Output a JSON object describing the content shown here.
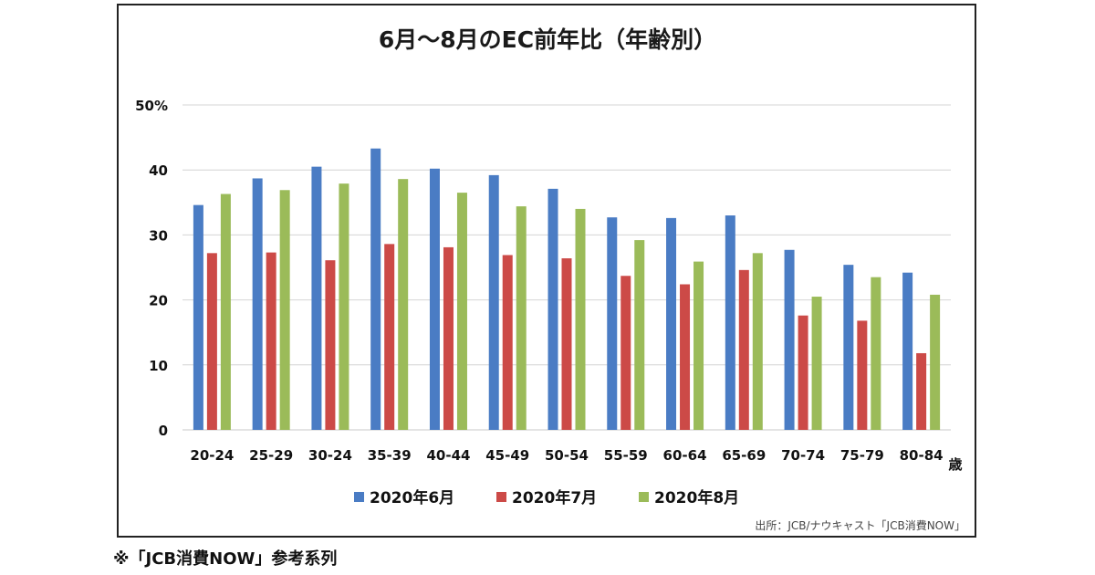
{
  "chart_data": {
    "type": "bar",
    "title": "6月～8月のEC前年比（年齢別）",
    "x_unit": "歳",
    "y_tick_labels": [
      "50%",
      "40",
      "30",
      "20",
      "10",
      "0"
    ],
    "ylim": [
      0,
      50
    ],
    "grid": true,
    "legend_position": "bottom",
    "categories": [
      "20-24",
      "25-29",
      "30-24",
      "35-39",
      "40-44",
      "45-49",
      "50-54",
      "55-59",
      "60-64",
      "65-69",
      "70-74",
      "75-79",
      "80-84"
    ],
    "series": [
      {
        "name": "2020年6月",
        "color": "#4a7cc4",
        "values": [
          34.6,
          38.7,
          40.5,
          43.3,
          40.2,
          39.2,
          37.1,
          32.7,
          32.6,
          33.0,
          27.7,
          25.4,
          24.2
        ]
      },
      {
        "name": "2020年7月",
        "color": "#cc4a47",
        "values": [
          27.2,
          27.3,
          26.1,
          28.6,
          28.1,
          26.9,
          26.4,
          23.7,
          22.4,
          24.6,
          17.6,
          16.8,
          11.8
        ]
      },
      {
        "name": "2020年8月",
        "color": "#9bbb59",
        "values": [
          36.3,
          36.9,
          37.9,
          38.6,
          36.5,
          34.4,
          34.0,
          29.2,
          25.9,
          27.2,
          20.5,
          23.5,
          20.8
        ]
      }
    ],
    "source": "出所：JCB/ナウキャスト「JCB消費NOW」"
  },
  "footnote": "※「JCB消費NOW」参考系列"
}
